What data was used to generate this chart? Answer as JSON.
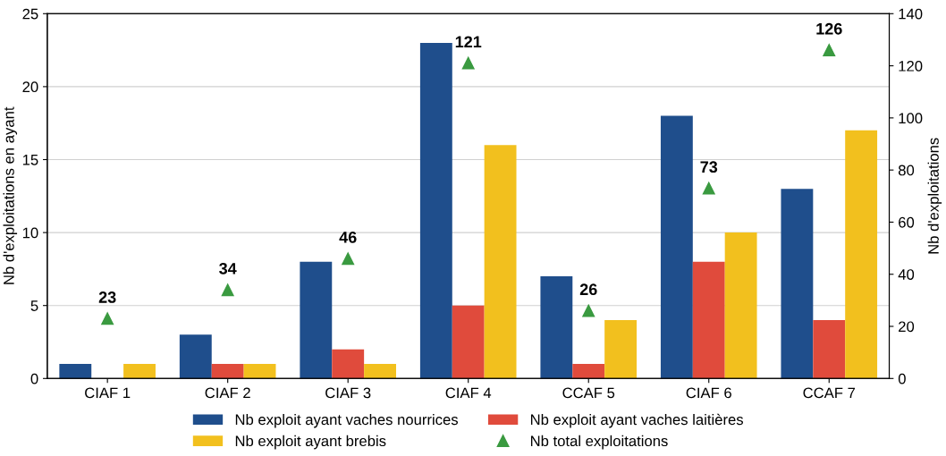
{
  "chart_data": {
    "type": "bar",
    "ylabel": "Nb d'exploitations en ayant",
    "y2label": "Nb d'exploitations",
    "categories": [
      "CIAF 1",
      "CIAF 2",
      "CIAF 3",
      "CIAF 4",
      "CCAF 5",
      "CIAF 6",
      "CCAF 7"
    ],
    "series": [
      {
        "name": "Nb exploit ayant vaches nourrices",
        "color": "#1f4e8c",
        "values": [
          1,
          3,
          8,
          23,
          7,
          18,
          13
        ]
      },
      {
        "name": "Nb exploit ayant vaches laitières",
        "color": "#e04b3c",
        "values": [
          0,
          1,
          2,
          5,
          1,
          8,
          4
        ]
      },
      {
        "name": "Nb exploit ayant brebis",
        "color": "#f2c01e",
        "values": [
          1,
          1,
          1,
          16,
          4,
          10,
          17
        ]
      },
      {
        "name": "Nb total exploitations",
        "type": "scatter",
        "axis": "y2",
        "marker": "triangle",
        "color": "#3a9a40",
        "values": [
          23,
          34,
          46,
          121,
          26,
          73,
          126
        ],
        "value_labels": [
          "23",
          "34",
          "46",
          "121",
          "26",
          "73",
          "126"
        ]
      }
    ],
    "ylim": [
      0,
      25
    ],
    "yticks": [
      0,
      5,
      10,
      15,
      20,
      25
    ],
    "y2lim": [
      0,
      140
    ],
    "y2ticks": [
      0,
      20,
      40,
      60,
      80,
      100,
      120,
      140
    ],
    "grid": "y",
    "legend": "bottom"
  }
}
